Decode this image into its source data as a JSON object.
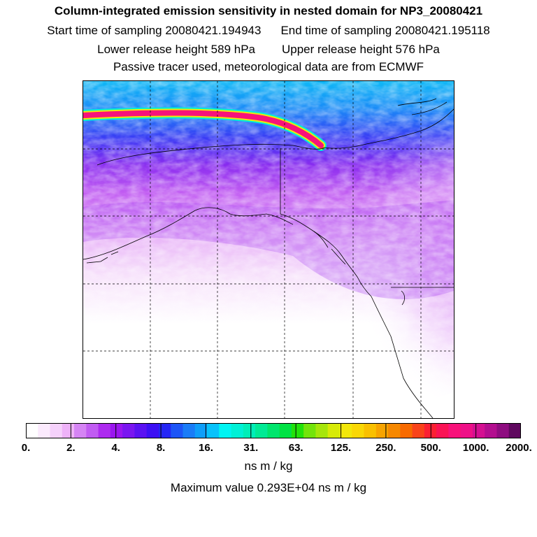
{
  "title": "Column-integrated emission sensitivity in nested domain for NP3_20080421",
  "sampling": {
    "start": "Start time of sampling 20080421.194943",
    "end": "End time of sampling 20080421.195118"
  },
  "release": {
    "lower": "Lower release height  589 hPa",
    "upper": "Upper release height  576 hPa"
  },
  "info": "Passive tracer used, meteorological data are from ECMWF",
  "colorbar": {
    "tick_labels": [
      "0.",
      "2.",
      "4.",
      "8.",
      "16.",
      "31.",
      "63.",
      "125.",
      "250.",
      "500.",
      "1000.",
      "2000."
    ],
    "colors": [
      "#ffffff",
      "#fbeafd",
      "#f5d1fb",
      "#eeb2f8",
      "#d584f4",
      "#c15cf2",
      "#ad2bef",
      "#9a16ef",
      "#7a16f0",
      "#5a12f2",
      "#3c10f4",
      "#2526f5",
      "#1d55f6",
      "#1a7cf7",
      "#0f9ef9",
      "#08c2fb",
      "#00f4f2",
      "#00f0d6",
      "#00eeb8",
      "#00ea95",
      "#00e56d",
      "#00e244",
      "#22e20b",
      "#73e40b",
      "#a6e60b",
      "#d7ea08",
      "#f2e70a",
      "#f9d705",
      "#f9c000",
      "#f7a400",
      "#f68800",
      "#f76a00",
      "#f9431a",
      "#fb2033",
      "#fa1355",
      "#f8127a",
      "#ee1087",
      "#d41091",
      "#b30e8f",
      "#8e0c80",
      "#5f085e"
    ],
    "units": "ns m / kg"
  },
  "max_value": "Maximum value  0.293E+04 ns m / kg",
  "map": {
    "grid_cols": 5,
    "grid_rows": 5,
    "plume_colors": [
      "#00f0d6",
      "#f2e70a",
      "#f8127a"
    ]
  }
}
